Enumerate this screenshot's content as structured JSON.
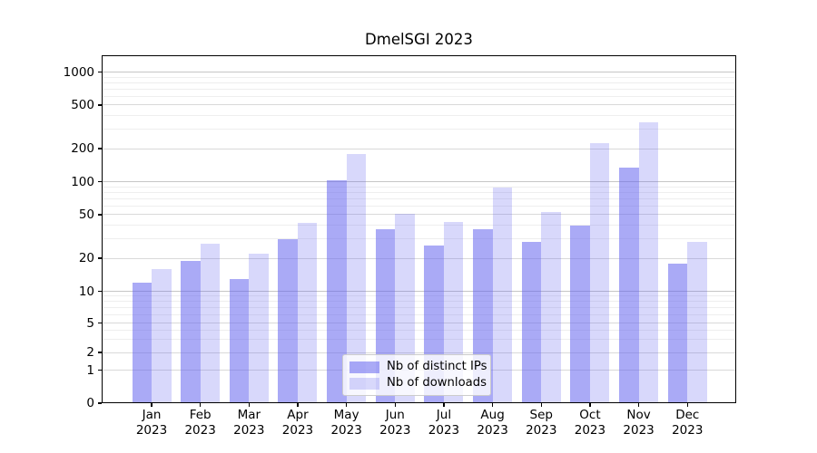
{
  "chart_data": {
    "type": "bar",
    "title": "DmelSGI 2023",
    "categories": [
      {
        "month": "Jan",
        "year": "2023"
      },
      {
        "month": "Feb",
        "year": "2023"
      },
      {
        "month": "Mar",
        "year": "2023"
      },
      {
        "month": "Apr",
        "year": "2023"
      },
      {
        "month": "May",
        "year": "2023"
      },
      {
        "month": "Jun",
        "year": "2023"
      },
      {
        "month": "Jul",
        "year": "2023"
      },
      {
        "month": "Aug",
        "year": "2023"
      },
      {
        "month": "Sep",
        "year": "2023"
      },
      {
        "month": "Oct",
        "year": "2023"
      },
      {
        "month": "Nov",
        "year": "2023"
      },
      {
        "month": "Dec",
        "year": "2023"
      }
    ],
    "series": [
      {
        "name": "Nb of distinct IPs",
        "values": [
          12,
          19,
          13,
          30,
          103,
          37,
          26,
          37,
          28,
          40,
          135,
          18
        ]
      },
      {
        "name": "Nb of downloads",
        "values": [
          16,
          27,
          22,
          42,
          180,
          51,
          43,
          88,
          53,
          225,
          345,
          28
        ]
      }
    ],
    "xlabel": "",
    "ylabel": "",
    "yscale": "log-above-1-linear-to-0",
    "y_ticks": [
      0,
      1,
      2,
      5,
      10,
      20,
      50,
      100,
      200,
      500,
      1000
    ],
    "y_minor_ticks": [
      3,
      4,
      6,
      7,
      8,
      9,
      30,
      40,
      60,
      70,
      80,
      90,
      300,
      400,
      600,
      700,
      800,
      900
    ],
    "ylim": [
      0,
      1400
    ],
    "grid": true,
    "legend_position": "lower center"
  },
  "colors": {
    "bar_distinct_ips": "rgba(100,100,238,0.55)",
    "bar_downloads": "rgba(100,100,238,0.25)",
    "grid_major": "#d9d9d9",
    "grid_major_strong": "#c6c6c6",
    "grid_minor": "#eeeeee",
    "spine": "#000000",
    "legend_border": "#cccccc",
    "text": "#000000"
  }
}
